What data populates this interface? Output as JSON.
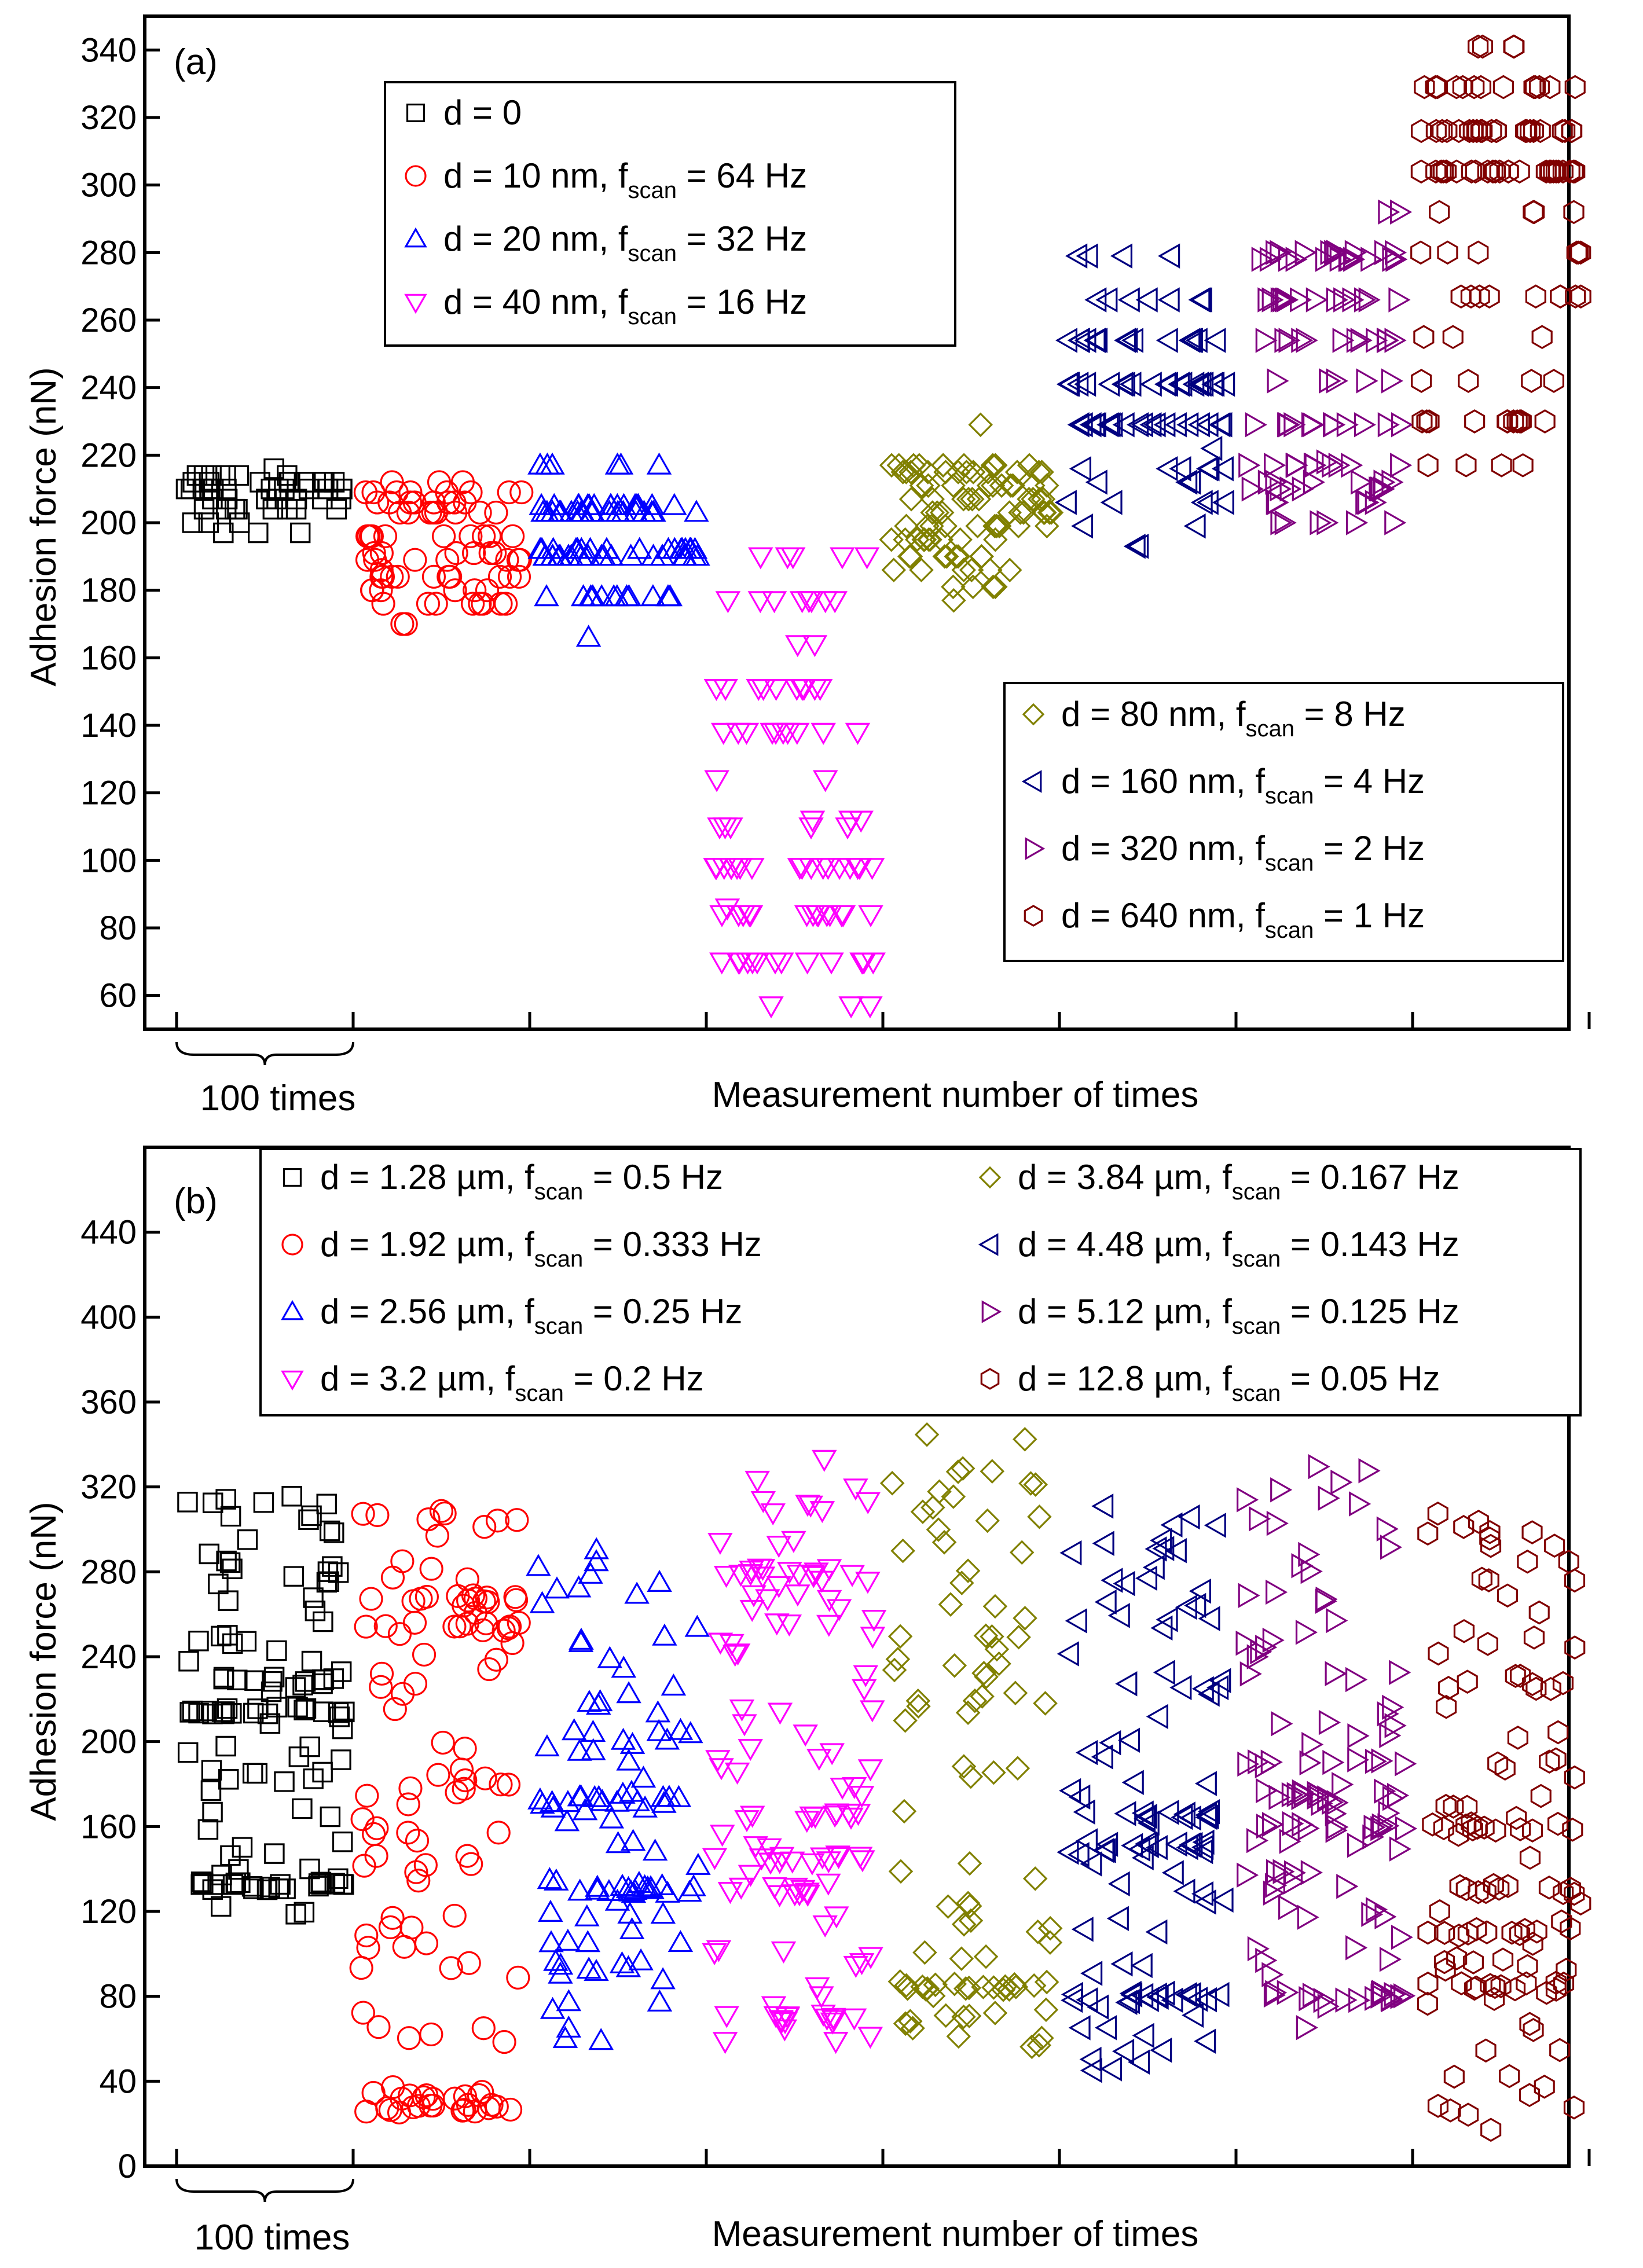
{
  "colors": {
    "d0": "#000000",
    "d10": "#ff0000",
    "d20": "#0000ff",
    "d40": "#ff00ff",
    "d80": "#808000",
    "d160": "#000080",
    "d320": "#800080",
    "d640": "#800000"
  },
  "chart_data": [
    {
      "type": "scatter",
      "panel_label": "(a)",
      "ylabel": "Adhesion force (nN)",
      "xlabel": "Measurement number of times",
      "bracket_label": "100 times",
      "ylim": [
        50,
        350
      ],
      "yticks": [
        60,
        80,
        100,
        120,
        140,
        160,
        180,
        200,
        220,
        240,
        260,
        280,
        300,
        320,
        340
      ],
      "legend_top": [
        "d = 0",
        "d = 10 nm, f_scan = 64 Hz",
        "d = 20 nm, f_scan = 32 Hz",
        "d = 40 nm, f_scan = 16 Hz"
      ],
      "legend_bottom": [
        "d =   80 nm, f_scan = 8 Hz",
        "d = 160 nm, f_scan = 4 Hz",
        "d = 320 nm, f_scan = 2 Hz",
        "d = 640 nm, f_scan = 1 Hz"
      ],
      "series": [
        {
          "label_main": "d = 0",
          "label_sub": "",
          "label_tail": "",
          "marker": "square",
          "color_key": "d0",
          "levels": [
            197,
            200,
            204,
            207,
            210,
            212,
            214
          ],
          "level_counts": [
            3,
            3,
            8,
            8,
            14,
            10,
            6
          ],
          "outliers": [
            216
          ]
        },
        {
          "label_main": "d = 10 nm, f",
          "label_sub": "scan",
          "label_tail": " = 64 Hz",
          "marker": "circle",
          "color_key": "d10",
          "levels": [
            170,
            176,
            180,
            184,
            189,
            191,
            196,
            203,
            206,
            209,
            212
          ],
          "level_counts": [
            2,
            8,
            6,
            10,
            7,
            6,
            10,
            8,
            8,
            8,
            3
          ],
          "outliers": [
            186
          ]
        },
        {
          "label_main": "d = 20 nm, f",
          "label_sub": "scan",
          "label_tail": " = 32 Hz",
          "marker": "triangle-up",
          "color_key": "d20",
          "levels": [
            166,
            178,
            190,
            192,
            203,
            205,
            217
          ],
          "level_counts": [
            1,
            12,
            20,
            18,
            20,
            16,
            6
          ],
          "outliers": []
        },
        {
          "label_main": "d = 40 nm, f",
          "label_sub": "scan",
          "label_tail": " = 16 Hz",
          "marker": "triangle-down",
          "color_key": "d40",
          "levels": [
            57,
            70,
            84,
            98,
            110,
            112,
            124,
            138,
            151,
            164,
            177,
            190
          ],
          "level_counts": [
            3,
            16,
            16,
            18,
            5,
            3,
            2,
            10,
            10,
            2,
            8,
            5
          ],
          "outliers": [
            86
          ]
        },
        {
          "label_main": "d =   80 nm, f",
          "label_sub": "scan",
          "label_tail": " = 8 Hz",
          "marker": "diamond",
          "color_key": "d80",
          "levels": [
            177,
            181,
            186,
            190,
            195,
            199,
            203,
            207,
            211,
            215,
            217,
            229
          ],
          "level_counts": [
            1,
            4,
            6,
            8,
            10,
            10,
            10,
            10,
            10,
            12,
            10,
            1
          ],
          "outliers": []
        },
        {
          "label_main": "d = 160 nm, f",
          "label_sub": "scan",
          "label_tail": " = 4 Hz",
          "marker": "triangle-left",
          "color_key": "d160",
          "levels": [
            193,
            199,
            206,
            212,
            216,
            229,
            241,
            254,
            266,
            279
          ],
          "level_counts": [
            2,
            2,
            5,
            3,
            6,
            20,
            20,
            16,
            8,
            4
          ],
          "outliers": [
            222
          ]
        },
        {
          "label_main": "d = 320 nm, f",
          "label_sub": "scan",
          "label_tail": " = 2 Hz",
          "marker": "triangle-right",
          "color_key": "d320",
          "levels": [
            200,
            206,
            210,
            212,
            217,
            229,
            242,
            254,
            266,
            278,
            280,
            292
          ],
          "level_counts": [
            6,
            6,
            8,
            6,
            10,
            12,
            6,
            12,
            14,
            12,
            10,
            2
          ],
          "outliers": [
            218
          ]
        },
        {
          "label_main": "d = 640 nm, f",
          "label_sub": "scan",
          "label_tail": " = 1 Hz",
          "marker": "hexagon",
          "color_key": "d640",
          "levels": [
            217,
            230,
            242,
            255,
            267,
            280,
            292,
            304,
            316,
            329,
            341
          ],
          "level_counts": [
            4,
            12,
            4,
            3,
            9,
            6,
            4,
            26,
            22,
            14,
            4
          ],
          "outliers": []
        }
      ]
    },
    {
      "type": "scatter",
      "panel_label": "(b)",
      "ylabel": "Adhesion force (nN)",
      "xlabel": "Measurement number of times",
      "bracket_label": "100 times",
      "ylim": [
        0,
        480
      ],
      "yticks": [
        0,
        40,
        80,
        120,
        160,
        200,
        240,
        280,
        320,
        360,
        400,
        440
      ],
      "series": [
        {
          "label_main": "d = 1.28 µm, f",
          "label_sub": "scan",
          "label_tail": " = 0.5 Hz",
          "marker": "square",
          "color_key": "d0",
          "range": [
            118,
            318
          ],
          "levels": [
            132,
            215,
            229
          ],
          "level_counts": [
            20,
            18,
            10
          ]
        },
        {
          "label_main": "d = 1.92 µm, f",
          "label_sub": "scan",
          "label_tail": " = 0.333 Hz",
          "marker": "circle",
          "color_key": "d10",
          "range": [
            25,
            310
          ],
          "levels": [
            27,
            33,
            254,
            267
          ],
          "level_counts": [
            14,
            10,
            10,
            12
          ]
        },
        {
          "label_main": "d = 2.56 µm, f",
          "label_sub": "scan",
          "label_tail": " = 0.25 Hz",
          "marker": "triangle-up",
          "color_key": "d20",
          "range": [
            55,
            295
          ],
          "levels": [
            130,
            172
          ],
          "level_counts": [
            16,
            14
          ]
        },
        {
          "label_main": "d = 3.2 µm, f",
          "label_sub": "scan",
          "label_tail": " = 0.2 Hz",
          "marker": "triangle-down",
          "color_key": "d40",
          "range": [
            50,
            335
          ],
          "levels": [
            70,
            130,
            145,
            165,
            280
          ],
          "level_counts": [
            12,
            8,
            10,
            10,
            12
          ]
        },
        {
          "label_main": "d = 3.84 µm, f",
          "label_sub": "scan",
          "label_tail": " = 0.167 Hz",
          "marker": "diamond",
          "color_key": "d80",
          "range": [
            55,
            345
          ],
          "levels": [
            85
          ],
          "level_counts": [
            18
          ]
        },
        {
          "label_main": "d = 4.48 µm, f",
          "label_sub": "scan",
          "label_tail": " = 0.143 Hz",
          "marker": "triangle-left",
          "color_key": "d160",
          "range": [
            45,
            320
          ],
          "levels": [
            80,
            150,
            165
          ],
          "level_counts": [
            16,
            14,
            12
          ]
        },
        {
          "label_main": "d = 5.12 µm, f",
          "label_sub": "scan",
          "label_tail": " = 0.125 Hz",
          "marker": "triangle-right",
          "color_key": "d320",
          "range": [
            60,
            330
          ],
          "levels": [
            80,
            160,
            175,
            190
          ],
          "level_counts": [
            14,
            12,
            12,
            10
          ]
        },
        {
          "label_main": "d = 12.8 µm, f",
          "label_sub": "scan",
          "label_tail": " = 0.05 Hz",
          "marker": "hexagon",
          "color_key": "d640",
          "range": [
            15,
            320
          ],
          "levels": [
            85,
            110,
            130,
            160
          ],
          "level_counts": [
            12,
            10,
            10,
            10
          ]
        }
      ]
    }
  ]
}
